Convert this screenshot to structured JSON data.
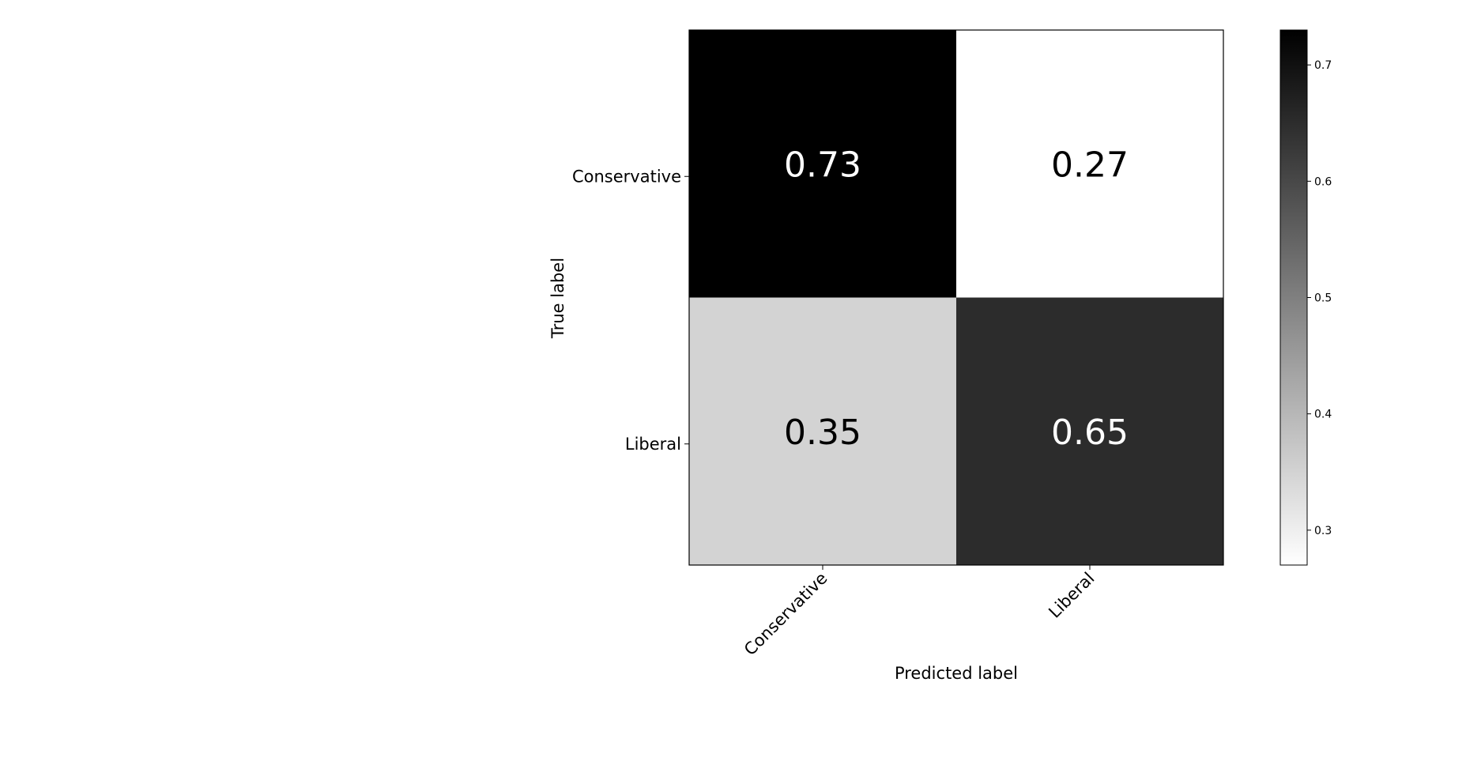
{
  "chart_data": {
    "type": "heatmap",
    "title": "",
    "xlabel": "Predicted label",
    "ylabel": "True label",
    "x_categories": [
      "Conservative",
      "Liberal"
    ],
    "y_categories": [
      "Conservative",
      "Liberal"
    ],
    "values": [
      [
        0.73,
        0.27
      ],
      [
        0.35,
        0.65
      ]
    ],
    "cell_labels": [
      [
        "0.73",
        "0.27"
      ],
      [
        "0.35",
        "0.65"
      ]
    ],
    "colormap": "Greys",
    "colorbar": {
      "range": [
        0.27,
        0.73
      ],
      "ticks": [
        0.3,
        0.4,
        0.5,
        0.6,
        0.7
      ],
      "tick_labels": [
        "0.3",
        "0.4",
        "0.5",
        "0.6",
        "0.7"
      ]
    },
    "x_tick_rotation_deg": 45,
    "grid": false
  }
}
